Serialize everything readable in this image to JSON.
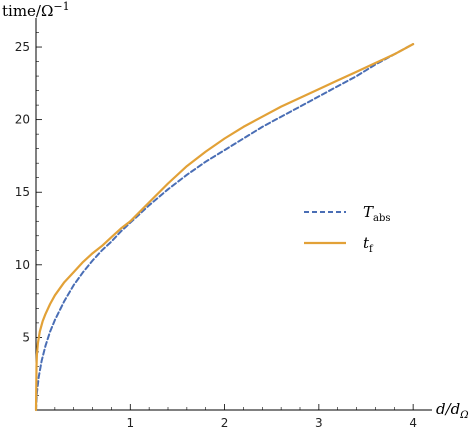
{
  "chart_data": {
    "type": "line",
    "xlabel": "d/d",
    "xlabel_sub": "Ω",
    "ylabel": "time/Ω",
    "ylabel_sup": "−1",
    "xlim": [
      0,
      4.2
    ],
    "ylim": [
      0,
      27
    ],
    "x_ticks": [
      1,
      2,
      3,
      4
    ],
    "y_ticks": [
      5,
      10,
      15,
      20,
      25
    ],
    "grid": false,
    "legend_position": "right-middle",
    "series": [
      {
        "name": "T",
        "name_sub": "abs",
        "style": "dashed",
        "color": "#4a6eb5",
        "x": [
          0.0,
          0.01,
          0.03,
          0.06,
          0.1,
          0.15,
          0.2,
          0.3,
          0.4,
          0.5,
          0.6,
          0.7,
          0.8,
          0.9,
          1.0,
          1.2,
          1.4,
          1.6,
          1.8,
          2.0,
          2.2,
          2.4,
          2.6,
          2.8,
          3.0,
          3.2,
          3.4,
          3.6,
          3.8,
          4.0
        ],
        "y": [
          0.0,
          1.2,
          2.3,
          3.4,
          4.4,
          5.4,
          6.2,
          7.5,
          8.6,
          9.5,
          10.3,
          11.0,
          11.6,
          12.3,
          12.9,
          14.1,
          15.2,
          16.2,
          17.1,
          17.9,
          18.7,
          19.5,
          20.2,
          20.9,
          21.6,
          22.3,
          23.0,
          23.8,
          24.5,
          25.2
        ]
      },
      {
        "name": "t",
        "name_sub": "f",
        "style": "solid",
        "color": "#e2a137",
        "x": [
          0.0,
          0.005,
          0.01,
          0.02,
          0.04,
          0.07,
          0.1,
          0.15,
          0.2,
          0.3,
          0.4,
          0.5,
          0.6,
          0.7,
          0.8,
          0.9,
          1.0,
          1.2,
          1.4,
          1.6,
          1.8,
          2.0,
          2.2,
          2.4,
          2.6,
          2.8,
          3.0,
          3.2,
          3.4,
          3.6,
          3.8,
          4.0
        ],
        "y": [
          0.0,
          3.0,
          3.8,
          4.6,
          5.4,
          6.1,
          6.6,
          7.3,
          7.9,
          8.8,
          9.5,
          10.2,
          10.8,
          11.3,
          11.9,
          12.5,
          13.0,
          14.3,
          15.6,
          16.8,
          17.8,
          18.7,
          19.5,
          20.2,
          20.9,
          21.5,
          22.1,
          22.7,
          23.3,
          23.9,
          24.5,
          25.2
        ]
      }
    ]
  }
}
